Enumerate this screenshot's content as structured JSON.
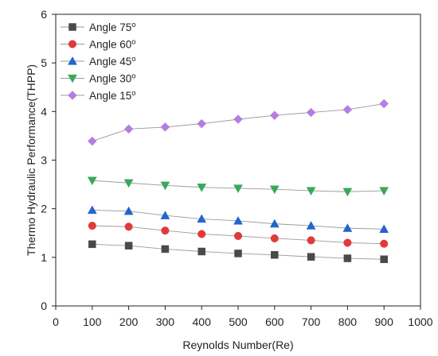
{
  "chart_data": {
    "type": "line",
    "title": "",
    "xlabel": "Reynolds Number(Re)",
    "ylabel": "Thermo Hydraulic Performance(THPP)",
    "xlim": [
      0,
      1000
    ],
    "ylim": [
      0,
      6
    ],
    "xticks": [
      "0",
      "100",
      "200",
      "300",
      "400",
      "500",
      "600",
      "700",
      "800",
      "900",
      "1000"
    ],
    "yticks": [
      "0",
      "1",
      "2",
      "3",
      "4",
      "5",
      "6"
    ],
    "grid": false,
    "legend_position": "top-left",
    "x": [
      100,
      200,
      300,
      400,
      500,
      600,
      700,
      800,
      900
    ],
    "series": [
      {
        "name": "Angle 75",
        "name_sup": "o",
        "marker": "square",
        "color": "#4a4a4a",
        "values": [
          1.27,
          1.24,
          1.17,
          1.12,
          1.08,
          1.05,
          1.01,
          0.98,
          0.96
        ]
      },
      {
        "name": "Angle 60",
        "name_sup": "o",
        "marker": "circle",
        "color": "#e03a3a",
        "values": [
          1.65,
          1.63,
          1.55,
          1.48,
          1.44,
          1.39,
          1.35,
          1.3,
          1.28
        ]
      },
      {
        "name": "Angle 45",
        "name_sup": "o",
        "marker": "triangle-up",
        "color": "#2266cc",
        "values": [
          1.97,
          1.95,
          1.86,
          1.79,
          1.75,
          1.69,
          1.65,
          1.6,
          1.58
        ]
      },
      {
        "name": "Angle 30",
        "name_sup": "o",
        "marker": "triangle-down",
        "color": "#3aa85a",
        "values": [
          2.58,
          2.53,
          2.48,
          2.44,
          2.42,
          2.4,
          2.37,
          2.35,
          2.37
        ]
      },
      {
        "name": "Angle 15",
        "name_sup": "o",
        "marker": "diamond",
        "color": "#b47ee0",
        "values": [
          3.39,
          3.64,
          3.68,
          3.75,
          3.84,
          3.92,
          3.98,
          4.04,
          4.16
        ]
      }
    ]
  }
}
